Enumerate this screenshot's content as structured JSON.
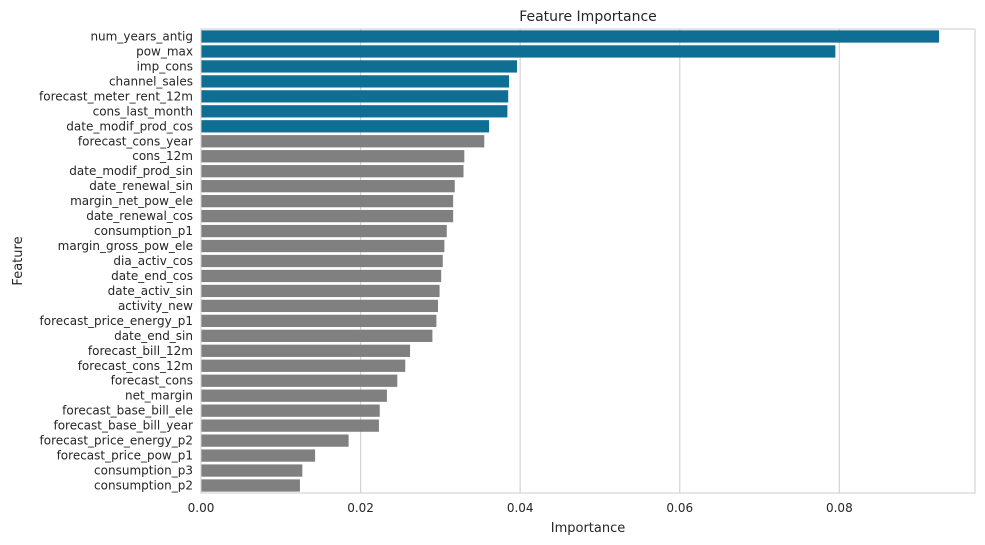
{
  "chart_data": {
    "type": "bar",
    "orientation": "horizontal",
    "title": "Feature Importance",
    "xlabel": "Importance",
    "ylabel": "Feature",
    "xlim": [
      0,
      0.097
    ],
    "xticks": [
      0.0,
      0.02,
      0.04,
      0.06,
      0.08
    ],
    "xtick_labels": [
      "0.00",
      "0.02",
      "0.04",
      "0.06",
      "0.08"
    ],
    "grid": "vertical",
    "colors": {
      "highlight": "#0e6e94",
      "default": "#808080",
      "grid": "#d4d4d4",
      "frame": "#cccccc"
    },
    "categories": [
      "num_years_antig",
      "pow_max",
      "imp_cons",
      "channel_sales",
      "forecast_meter_rent_12m",
      "cons_last_month",
      "date_modif_prod_cos",
      "forecast_cons_year",
      "cons_12m",
      "date_modif_prod_sin",
      "date_renewal_sin",
      "margin_net_pow_ele",
      "date_renewal_cos",
      "consumption_p1",
      "margin_gross_pow_ele",
      "dia_activ_cos",
      "date_end_cos",
      "date_activ_sin",
      "activity_new",
      "forecast_price_energy_p1",
      "date_end_sin",
      "forecast_bill_12m",
      "forecast_cons_12m",
      "forecast_cons",
      "net_margin",
      "forecast_base_bill_ele",
      "forecast_base_bill_year",
      "forecast_price_energy_p2",
      "forecast_price_pow_p1",
      "consumption_p3",
      "consumption_p2"
    ],
    "values": [
      0.0925,
      0.0795,
      0.0396,
      0.0386,
      0.0385,
      0.0384,
      0.0361,
      0.0355,
      0.033,
      0.0329,
      0.0318,
      0.0316,
      0.0316,
      0.0308,
      0.0305,
      0.0303,
      0.0301,
      0.0299,
      0.0297,
      0.0295,
      0.029,
      0.0262,
      0.0256,
      0.0246,
      0.0233,
      0.0224,
      0.0223,
      0.0185,
      0.0143,
      0.0127,
      0.0124
    ],
    "highlighted": [
      true,
      true,
      true,
      true,
      true,
      true,
      true,
      false,
      false,
      false,
      false,
      false,
      false,
      false,
      false,
      false,
      false,
      false,
      false,
      false,
      false,
      false,
      false,
      false,
      false,
      false,
      false,
      false,
      false,
      false,
      false
    ]
  }
}
